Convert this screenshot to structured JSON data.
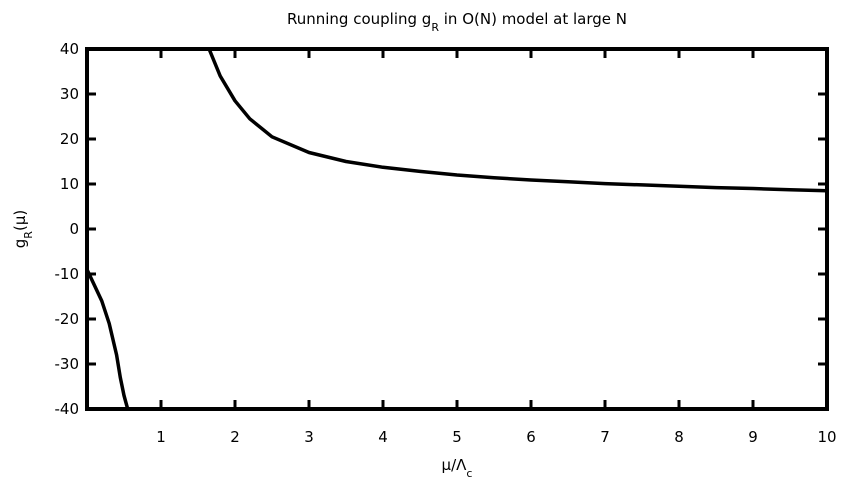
{
  "chart_data": {
    "type": "line",
    "title": {
      "text": "Running coupling g",
      "sub": "R",
      "rest": " in O(N) model at large N"
    },
    "xlabel": {
      "text": "μ/Λ",
      "sub": "c"
    },
    "ylabel": {
      "text": "g",
      "sub": "R",
      "rest": "(μ)"
    },
    "xlim": [
      0,
      10
    ],
    "ylim": [
      -40,
      40
    ],
    "xticks": [
      1,
      2,
      3,
      4,
      5,
      6,
      7,
      8,
      9,
      10
    ],
    "yticks": [
      -40,
      -30,
      -20,
      -10,
      0,
      10,
      20,
      30,
      40
    ],
    "xtick_labels": [
      "1",
      "2",
      "3",
      "4",
      "5",
      "6",
      "7",
      "8",
      "9",
      "10"
    ],
    "ytick_labels": [
      "-40",
      "-30",
      "-20",
      "-10",
      "0",
      "10",
      "20",
      "30",
      "40"
    ],
    "grid": false,
    "legend": "none",
    "series": [
      {
        "color": "#000000",
        "points": [
          [
            0.0,
            -9.0
          ],
          [
            0.1,
            -12.5
          ],
          [
            0.2,
            -16.0
          ],
          [
            0.3,
            -21.0
          ],
          [
            0.4,
            -28.0
          ],
          [
            0.45,
            -33.0
          ],
          [
            0.5,
            -37.0
          ],
          [
            0.55,
            -40.0
          ]
        ]
      },
      {
        "color": "#000000",
        "points": [
          [
            1.65,
            40.0
          ],
          [
            1.8,
            34.0
          ],
          [
            2.0,
            28.5
          ],
          [
            2.2,
            24.5
          ],
          [
            2.5,
            20.5
          ],
          [
            3.0,
            17.0
          ],
          [
            3.5,
            15.0
          ],
          [
            4.0,
            13.7
          ],
          [
            4.5,
            12.8
          ],
          [
            5.0,
            12.0
          ],
          [
            5.5,
            11.4
          ],
          [
            6.0,
            10.9
          ],
          [
            6.5,
            10.5
          ],
          [
            7.0,
            10.1
          ],
          [
            7.5,
            9.8
          ],
          [
            8.0,
            9.5
          ],
          [
            8.5,
            9.2
          ],
          [
            9.0,
            9.0
          ],
          [
            9.5,
            8.7
          ],
          [
            10.0,
            8.5
          ]
        ]
      }
    ]
  }
}
